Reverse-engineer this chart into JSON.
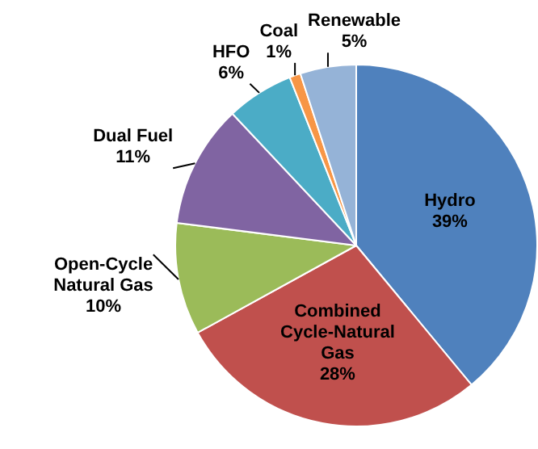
{
  "chart_data": {
    "type": "pie",
    "categories": [
      "Hydro",
      "Combined Cycle-Natural Gas",
      "Open-Cycle Natural Gas",
      "Dual Fuel",
      "HFO",
      "Coal",
      "Renewable"
    ],
    "values": [
      39,
      28,
      10,
      11,
      6,
      1,
      5
    ],
    "colors": [
      "#4f81bd",
      "#c0504d",
      "#9bbb59",
      "#8064a2",
      "#4bacc6",
      "#f79646",
      "#95b3d7"
    ],
    "value_labels": [
      "39%",
      "28%",
      "10%",
      "11%",
      "6%",
      "1%",
      "5%"
    ]
  }
}
